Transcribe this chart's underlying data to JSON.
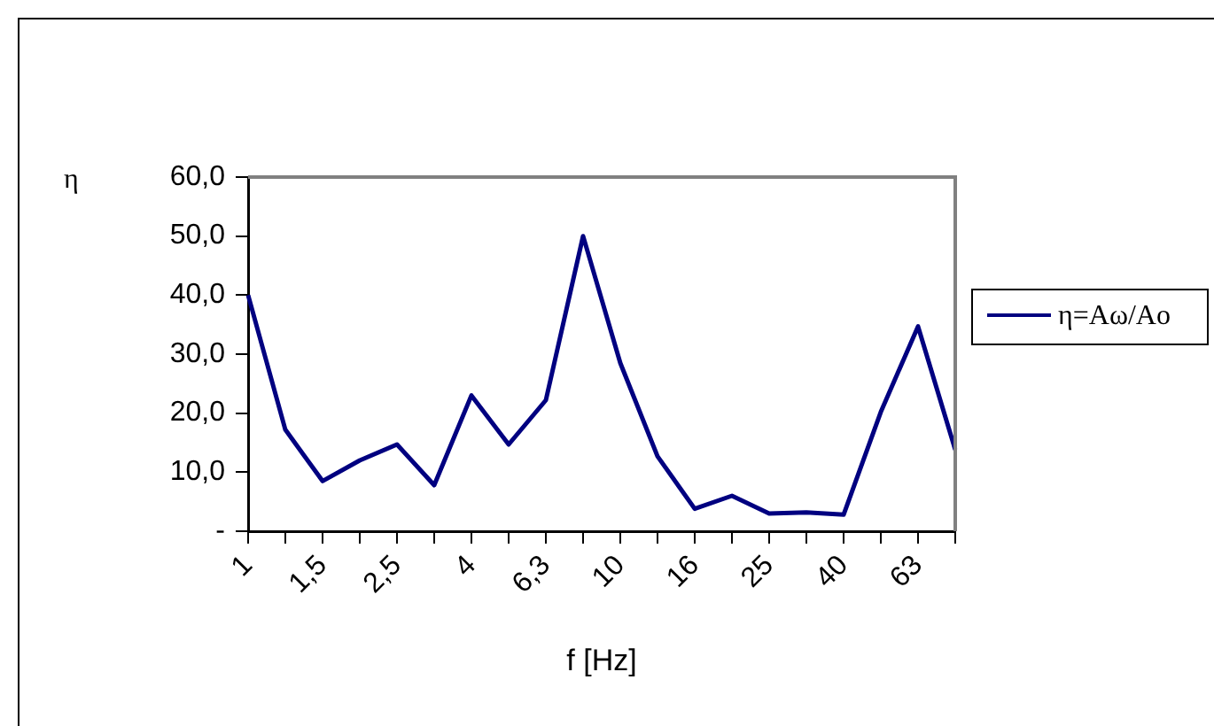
{
  "chart_data": {
    "type": "line",
    "xlabel": "f [Hz]",
    "ylabel": "η",
    "categories": [
      "1",
      null,
      "1,5",
      null,
      "2,5",
      null,
      "4",
      null,
      "6,3",
      null,
      "10",
      null,
      "16",
      null,
      "25",
      null,
      "40",
      null,
      "63",
      null
    ],
    "series": [
      {
        "name": "η=Aω/Ao",
        "color": "#000080",
        "values": [
          40.0,
          17.2,
          8.5,
          12,
          14.7,
          7.8,
          23,
          14.7,
          22.2,
          50,
          28.5,
          12.7,
          3.8,
          6,
          3,
          3.2,
          2.8,
          20.2,
          34.7,
          13.8
        ]
      }
    ],
    "ylim": [
      0,
      60
    ],
    "yticks": [
      {
        "value": 0,
        "label": "-"
      },
      {
        "value": 10,
        "label": "10,0"
      },
      {
        "value": 20,
        "label": "20,0"
      },
      {
        "value": 30,
        "label": "30,0"
      },
      {
        "value": 40,
        "label": "40,0"
      },
      {
        "value": 50,
        "label": "50,0"
      },
      {
        "value": 60,
        "label": "60,0"
      }
    ],
    "grid": false,
    "legend": "right",
    "marker": "none",
    "line_style": "solid"
  }
}
